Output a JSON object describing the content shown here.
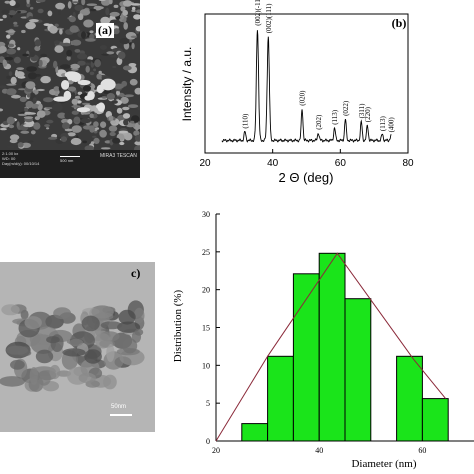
{
  "panel_a": {
    "label": "(a)",
    "info_lines": [
      "2:1.00 kx",
      "WD: 00",
      "Day(m/d/y): 00/10/14"
    ],
    "scale_label": "500 nm",
    "brand": "MIRA3 TESCAN"
  },
  "panel_c": {
    "label": "c)",
    "scale_label": "50nm"
  },
  "chart_data": [
    {
      "type": "line",
      "panel_label": "(b)",
      "xlabel": "2 Θ (deg)",
      "ylabel": "Intensity / a.u.",
      "xlim": [
        20,
        80
      ],
      "xticks": [
        "20",
        "40",
        "60",
        "80"
      ],
      "peaks": [
        {
          "x": 31.8,
          "h": 0.07,
          "label": "(110)"
        },
        {
          "x": 35.5,
          "h": 0.88,
          "label": "(002)(-111)"
        },
        {
          "x": 38.7,
          "h": 0.82,
          "label": "(002)(111)"
        },
        {
          "x": 48.7,
          "h": 0.25,
          "label": "(020)"
        },
        {
          "x": 53.5,
          "h": 0.06,
          "label": "(202)"
        },
        {
          "x": 58.3,
          "h": 0.1,
          "label": "(113)"
        },
        {
          "x": 61.5,
          "h": 0.17,
          "label": "(022)"
        },
        {
          "x": 66.2,
          "h": 0.15,
          "label": "(311)"
        },
        {
          "x": 68.0,
          "h": 0.12,
          "label": "(220)"
        },
        {
          "x": 72.4,
          "h": 0.05,
          "label": "(113)"
        },
        {
          "x": 75.0,
          "h": 0.04,
          "label": "(400)"
        }
      ]
    },
    {
      "type": "bar",
      "xlabel": "Diameter (nm)",
      "ylabel": "Distribution (%)",
      "xlim": [
        20,
        70
      ],
      "ylim": [
        0,
        30
      ],
      "xticks": [
        "20",
        "40",
        "60"
      ],
      "yticks": [
        "0",
        "5",
        "10",
        "15",
        "20",
        "25",
        "30"
      ],
      "bin_edges": [
        25,
        30,
        35,
        40,
        45,
        50,
        55,
        60,
        65,
        70
      ],
      "values": [
        2.3,
        11.2,
        22.1,
        24.8,
        18.8,
        0,
        11.2,
        5.6,
        0
      ],
      "bar_color": "#1ae41a",
      "fit_curve": {
        "color": "#8b2a3a",
        "points": [
          [
            20,
            0
          ],
          [
            30,
            11.2
          ],
          [
            43.5,
            24.8
          ],
          [
            58.3,
            10.8
          ],
          [
            64.5,
            5.6
          ]
        ]
      }
    }
  ]
}
